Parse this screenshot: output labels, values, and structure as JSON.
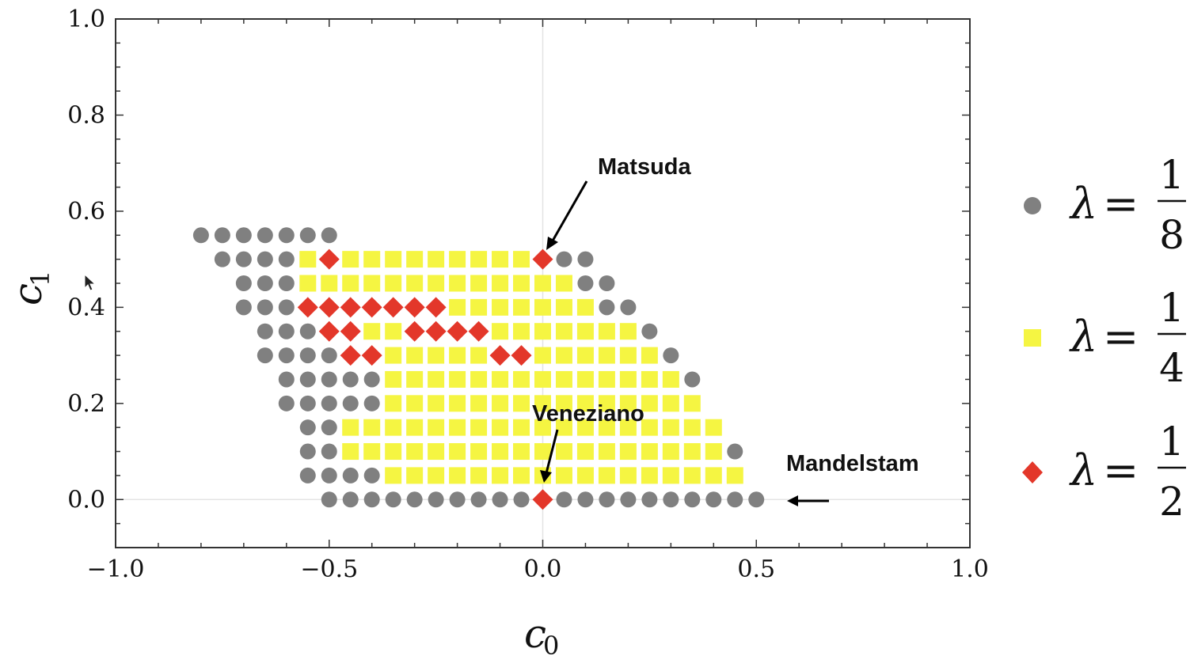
{
  "chart_data": {
    "type": "scatter",
    "xlabel": "c",
    "xlabel_sub": "0",
    "ylabel": "c",
    "ylabel_sub": "1",
    "xlim": [
      -1.0,
      1.0
    ],
    "ylim": [
      -0.1,
      1.0
    ],
    "xticks": [
      "-1.0",
      "-0.5",
      "0.0",
      "0.5",
      "1.0"
    ],
    "yticks": [
      "0.0",
      "0.2",
      "0.4",
      "0.6",
      "0.8",
      "1.0"
    ],
    "grid": false,
    "reference_lines": {
      "x": 0.0,
      "y": 0.0
    },
    "legend_position": "right",
    "legend": [
      {
        "symbol": "λ",
        "eq": "=",
        "num": "1",
        "den": "8",
        "marker": "circle",
        "color": "#808080"
      },
      {
        "symbol": "λ",
        "eq": "=",
        "num": "1",
        "den": "4",
        "marker": "square",
        "color": "#f5f542"
      },
      {
        "symbol": "λ",
        "eq": "=",
        "num": "1",
        "den": "2",
        "marker": "diamond",
        "color": "#e3372a"
      }
    ],
    "grid_step": {
      "x": 0.05,
      "y": 0.05
    },
    "series": [
      {
        "marker": "circle",
        "color": "#808080",
        "rows": [
          {
            "y": 0.55,
            "x_ranges": [
              [
                -0.8,
                -0.5
              ]
            ]
          },
          {
            "y": 0.5,
            "x_ranges": [
              [
                -0.75,
                -0.6
              ],
              [
                0.05,
                0.1
              ]
            ]
          },
          {
            "y": 0.45,
            "x_ranges": [
              [
                -0.7,
                -0.6
              ],
              [
                0.1,
                0.15
              ]
            ]
          },
          {
            "y": 0.4,
            "x_ranges": [
              [
                -0.7,
                -0.6
              ],
              [
                0.15,
                0.2
              ]
            ]
          },
          {
            "y": 0.35,
            "x_ranges": [
              [
                -0.65,
                -0.55
              ],
              [
                0.25,
                0.25
              ]
            ]
          },
          {
            "y": 0.3,
            "x_ranges": [
              [
                -0.65,
                -0.5
              ],
              [
                0.3,
                0.3
              ]
            ]
          },
          {
            "y": 0.25,
            "x_ranges": [
              [
                -0.6,
                -0.4
              ],
              [
                0.35,
                0.35
              ]
            ]
          },
          {
            "y": 0.2,
            "x_ranges": [
              [
                -0.6,
                -0.4
              ]
            ]
          },
          {
            "y": 0.15,
            "x_ranges": [
              [
                -0.55,
                -0.5
              ]
            ]
          },
          {
            "y": 0.1,
            "x_ranges": [
              [
                -0.55,
                -0.5
              ],
              [
                0.45,
                0.45
              ]
            ]
          },
          {
            "y": 0.05,
            "x_ranges": [
              [
                -0.55,
                -0.4
              ]
            ]
          },
          {
            "y": 0.0,
            "x_ranges": [
              [
                -0.5,
                -0.05
              ],
              [
                0.05,
                0.5
              ]
            ]
          }
        ]
      },
      {
        "marker": "square",
        "color": "#f5f542",
        "rows": [
          {
            "y": 0.5,
            "x_ranges": [
              [
                -0.55,
                -0.55
              ],
              [
                -0.45,
                -0.05
              ]
            ]
          },
          {
            "y": 0.45,
            "x_ranges": [
              [
                -0.55,
                0.05
              ]
            ]
          },
          {
            "y": 0.4,
            "x_ranges": [
              [
                -0.2,
                0.1
              ]
            ]
          },
          {
            "y": 0.35,
            "x_ranges": [
              [
                -0.4,
                -0.35
              ],
              [
                -0.1,
                0.2
              ]
            ]
          },
          {
            "y": 0.3,
            "x_ranges": [
              [
                -0.35,
                -0.15
              ],
              [
                0.0,
                0.25
              ]
            ]
          },
          {
            "y": 0.25,
            "x_ranges": [
              [
                -0.35,
                0.3
              ]
            ]
          },
          {
            "y": 0.2,
            "x_ranges": [
              [
                -0.35,
                0.35
              ]
            ]
          },
          {
            "y": 0.15,
            "x_ranges": [
              [
                -0.45,
                0.4
              ]
            ]
          },
          {
            "y": 0.1,
            "x_ranges": [
              [
                -0.45,
                0.4
              ]
            ]
          },
          {
            "y": 0.05,
            "x_ranges": [
              [
                -0.35,
                0.45
              ]
            ]
          }
        ]
      },
      {
        "marker": "diamond",
        "color": "#e3372a",
        "rows": [
          {
            "y": 0.5,
            "x_ranges": [
              [
                -0.5,
                -0.5
              ],
              [
                0.0,
                0.0
              ]
            ]
          },
          {
            "y": 0.4,
            "x_ranges": [
              [
                -0.55,
                -0.25
              ]
            ]
          },
          {
            "y": 0.35,
            "x_ranges": [
              [
                -0.5,
                -0.45
              ],
              [
                -0.3,
                -0.15
              ]
            ]
          },
          {
            "y": 0.3,
            "x_ranges": [
              [
                -0.45,
                -0.4
              ],
              [
                -0.1,
                -0.05
              ]
            ]
          },
          {
            "y": 0.0,
            "x_ranges": [
              [
                0.0,
                0.0
              ]
            ]
          }
        ]
      }
    ],
    "annotations": [
      {
        "text": "Matsuda",
        "x": 0.0,
        "y": 0.5
      },
      {
        "text": "Veneziano",
        "x": 0.0,
        "y": 0.0
      },
      {
        "text": "Mandelstam",
        "x": 0.55,
        "y": 0.0
      }
    ]
  }
}
